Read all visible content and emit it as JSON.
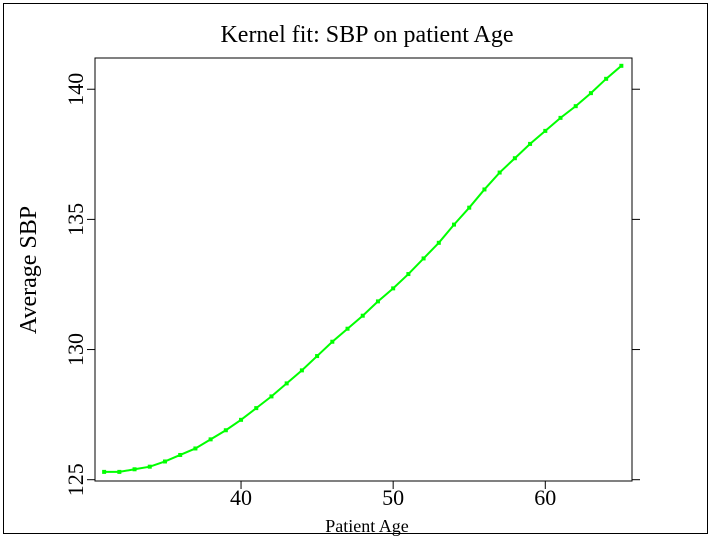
{
  "chart_data": {
    "type": "line",
    "title": "Kernel fit: SBP on patient Age",
    "xlabel": "Patient Age",
    "ylabel": "Average SBP",
    "x": [
      31,
      32,
      33,
      34,
      35,
      36,
      37,
      38,
      39,
      40,
      41,
      42,
      43,
      44,
      45,
      46,
      47,
      48,
      49,
      50,
      51,
      52,
      53,
      54,
      55,
      56,
      57,
      58,
      59,
      60,
      61,
      62,
      63,
      64,
      65
    ],
    "series": [
      {
        "name": "Average SBP",
        "color": "#00ff00",
        "values": [
          125.3,
          125.3,
          125.4,
          125.5,
          125.7,
          125.95,
          126.2,
          126.55,
          126.9,
          127.3,
          127.75,
          128.2,
          128.7,
          129.2,
          129.75,
          130.3,
          130.8,
          131.3,
          131.85,
          132.35,
          132.9,
          133.5,
          134.1,
          134.8,
          135.45,
          136.15,
          136.8,
          137.35,
          137.9,
          138.4,
          138.9,
          139.35,
          139.85,
          140.4,
          140.9
        ]
      }
    ],
    "xlim": [
      30.4,
      65.7
    ],
    "xticks": [
      40,
      50,
      60
    ],
    "ylim": [
      124.95,
      141.2
    ],
    "yticks": [
      125,
      130,
      135,
      140
    ]
  }
}
